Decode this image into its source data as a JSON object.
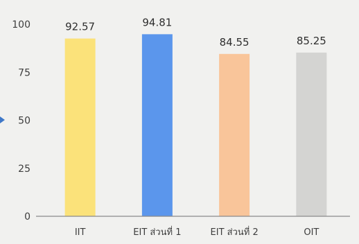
{
  "chart_data": {
    "type": "bar",
    "title": "",
    "xlabel": "",
    "ylabel": "",
    "categories": [
      "IIT",
      "EIT ส่วนที่ 1",
      "EIT ส่วนที่ 2",
      "OIT"
    ],
    "values": [
      92.57,
      94.81,
      84.55,
      85.25
    ],
    "value_labels": [
      "92.57",
      "94.81",
      "84.55",
      "85.25"
    ],
    "colors": [
      "#fbe27a",
      "#5b96ec",
      "#f9c59a",
      "#d4d4d2"
    ],
    "ylim": [
      0,
      100
    ],
    "yticks": [
      "0",
      "25",
      "50",
      "75",
      "100"
    ],
    "grid": false,
    "legend": "none",
    "axis_color": "#8a8a8a",
    "marker_color": "#3f78c8"
  }
}
